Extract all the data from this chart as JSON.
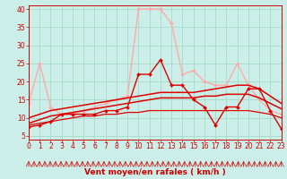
{
  "xlabel": "Vent moyen/en rafales ( km/h )",
  "bg_color": "#cceee8",
  "grid_color": "#aaddcc",
  "x_ticks": [
    0,
    1,
    2,
    3,
    4,
    5,
    6,
    7,
    8,
    9,
    10,
    11,
    12,
    13,
    14,
    15,
    16,
    17,
    18,
    19,
    20,
    21,
    22,
    23
  ],
  "y_ticks": [
    5,
    10,
    15,
    20,
    25,
    30,
    35,
    40
  ],
  "xlim": [
    0,
    23
  ],
  "ylim": [
    4,
    41
  ],
  "series": [
    {
      "name": "light_pink_rafales",
      "color": "#ffaaaa",
      "lw": 1.0,
      "marker": "D",
      "ms": 2.0,
      "zorder": 2,
      "x": [
        0,
        1,
        2,
        3,
        4,
        5,
        6,
        7,
        8,
        9,
        10,
        11,
        12,
        13,
        14,
        15,
        16,
        17,
        18,
        19,
        20,
        21,
        22,
        23
      ],
      "y": [
        14,
        25,
        13,
        11,
        11,
        12,
        13,
        14,
        15,
        16,
        40,
        40,
        40,
        36,
        22,
        23,
        20,
        19,
        19,
        25,
        19,
        15,
        12,
        11
      ]
    },
    {
      "name": "dark_red_markers",
      "color": "#dd0000",
      "lw": 1.0,
      "marker": "D",
      "ms": 2.0,
      "zorder": 3,
      "x": [
        0,
        1,
        2,
        3,
        4,
        5,
        6,
        7,
        8,
        9,
        10,
        11,
        12,
        13,
        14,
        15,
        16,
        17,
        18,
        19,
        20,
        21,
        22,
        23
      ],
      "y": [
        7.5,
        8,
        9,
        11,
        11,
        11,
        11,
        12,
        12,
        13,
        22,
        22,
        26,
        19,
        19,
        15,
        13,
        8,
        13,
        13,
        18,
        18,
        12,
        7
      ]
    },
    {
      "name": "smooth_upper",
      "color": "#dd0000",
      "lw": 1.1,
      "marker": "None",
      "ms": 0,
      "zorder": 2,
      "x": [
        0,
        1,
        2,
        3,
        4,
        5,
        6,
        7,
        8,
        9,
        10,
        11,
        12,
        13,
        14,
        15,
        16,
        17,
        18,
        19,
        20,
        21,
        22,
        23
      ],
      "y": [
        10,
        11,
        12,
        12.5,
        13,
        13.5,
        14,
        14.5,
        15,
        15.5,
        16,
        16.5,
        17,
        17,
        17,
        17,
        17.5,
        18,
        18.5,
        19,
        19,
        18,
        16,
        14
      ]
    },
    {
      "name": "smooth_mid",
      "color": "#dd0000",
      "lw": 1.1,
      "marker": "None",
      "ms": 0,
      "zorder": 2,
      "x": [
        0,
        1,
        2,
        3,
        4,
        5,
        6,
        7,
        8,
        9,
        10,
        11,
        12,
        13,
        14,
        15,
        16,
        17,
        18,
        19,
        20,
        21,
        22,
        23
      ],
      "y": [
        8.5,
        9.5,
        10.5,
        11,
        11.5,
        12,
        12.5,
        13,
        13.5,
        14,
        14.5,
        15,
        15.5,
        15.5,
        15.5,
        15.5,
        16,
        16,
        16.5,
        16.5,
        16.5,
        15.5,
        14,
        12.5
      ]
    },
    {
      "name": "smooth_lower",
      "color": "#dd0000",
      "lw": 0.9,
      "marker": "None",
      "ms": 0,
      "zorder": 2,
      "x": [
        0,
        1,
        2,
        3,
        4,
        5,
        6,
        7,
        8,
        9,
        10,
        11,
        12,
        13,
        14,
        15,
        16,
        17,
        18,
        19,
        20,
        21,
        22,
        23
      ],
      "y": [
        8,
        8.5,
        9,
        9.5,
        10,
        10.5,
        10.5,
        11,
        11,
        11.5,
        11.5,
        12,
        12,
        12,
        12,
        12,
        12,
        12,
        12,
        12,
        12,
        11.5,
        11,
        10
      ]
    }
  ],
  "tick_label_color": "#cc0000",
  "axis_label_color": "#cc0000",
  "axis_label_fontsize": 6.5,
  "tick_fontsize": 5.5,
  "spine_color": "#cc0000"
}
